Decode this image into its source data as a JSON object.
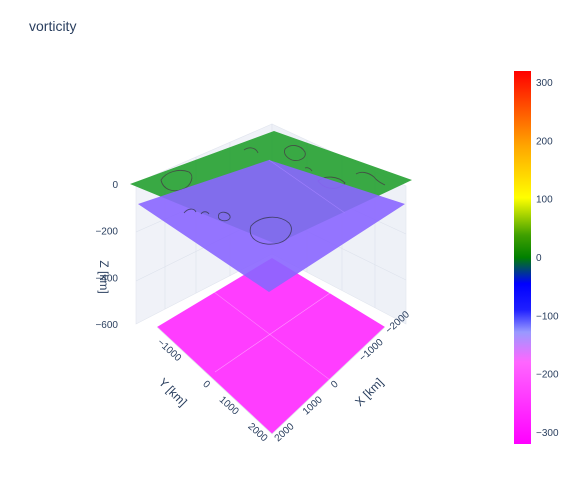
{
  "title": "vorticity",
  "chart_data": {
    "type": "surface",
    "title": "vorticity",
    "xlabel": "X [km]",
    "ylabel": "Y [km]",
    "zlabel": "Z [km]",
    "x_ticks": [
      -2000,
      -1000,
      0,
      1000,
      2000
    ],
    "x_tick_labels": [
      "−2000",
      "−1000",
      "0",
      "1000",
      "2000"
    ],
    "y_ticks": [
      -1000,
      0,
      1000,
      2000
    ],
    "y_tick_labels": [
      "−1000",
      "0",
      "1000",
      "2000"
    ],
    "z_ticks": [
      0,
      -200,
      -400,
      -600
    ],
    "z_tick_labels": [
      "0",
      "−200",
      "−400",
      "−600"
    ],
    "xlim": [
      -2000,
      2000
    ],
    "ylim": [
      -2000,
      2000
    ],
    "zlim": [
      -600,
      0
    ],
    "layers": [
      {
        "z": 0,
        "approx_value": 0,
        "color": "#2ca02c"
      },
      {
        "z": -100,
        "approx_value": -120,
        "color": "#8a66ff"
      },
      {
        "z": -600,
        "approx_value": -320,
        "color": "#ff33ff"
      }
    ],
    "colorbar": {
      "range": [
        -320,
        320
      ],
      "ticks": [
        300,
        200,
        100,
        0,
        -100,
        -200,
        -300
      ],
      "tick_labels": [
        "300",
        "200",
        "100",
        "0",
        "−100",
        "−200",
        "−300"
      ],
      "colorscale": [
        [
          0.0,
          "#ff00ff"
        ],
        [
          0.22,
          "#ff66ff"
        ],
        [
          0.3,
          "#9999ff"
        ],
        [
          0.36,
          "#1f1fff"
        ],
        [
          0.43,
          "#0000ff"
        ],
        [
          0.5,
          "#008000"
        ],
        [
          0.56,
          "#40a000"
        ],
        [
          0.66,
          "#ffff00"
        ],
        [
          0.8,
          "#ffa500"
        ],
        [
          1.0,
          "#ff0000"
        ]
      ]
    }
  }
}
